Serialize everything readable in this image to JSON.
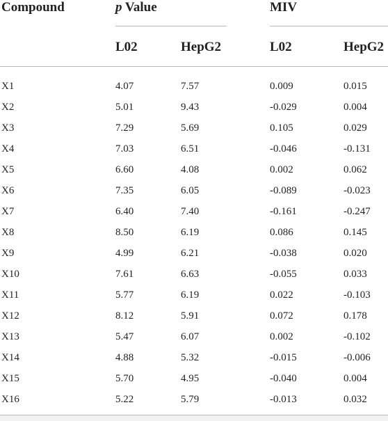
{
  "table": {
    "headers": {
      "compound": "Compound",
      "p_value_symbol": "p",
      "p_value_text": "Value",
      "miv": "MIV",
      "l02_p": "L02",
      "hepg2_p": "HepG2",
      "l02_miv": "L02",
      "hepg2_miv": "HepG2"
    },
    "rows": [
      {
        "compound": "X1",
        "p_l02": "4.07",
        "p_hepg2": "7.57",
        "miv_l02": "0.009",
        "miv_hepg2": "0.015"
      },
      {
        "compound": "X2",
        "p_l02": "5.01",
        "p_hepg2": "9.43",
        "miv_l02": "-0.029",
        "miv_hepg2": "0.004"
      },
      {
        "compound": "X3",
        "p_l02": "7.29",
        "p_hepg2": "5.69",
        "miv_l02": "0.105",
        "miv_hepg2": "0.029"
      },
      {
        "compound": "X4",
        "p_l02": "7.03",
        "p_hepg2": "6.51",
        "miv_l02": "-0.046",
        "miv_hepg2": "-0.131"
      },
      {
        "compound": "X5",
        "p_l02": "6.60",
        "p_hepg2": "4.08",
        "miv_l02": "0.002",
        "miv_hepg2": "0.062"
      },
      {
        "compound": "X6",
        "p_l02": "7.35",
        "p_hepg2": "6.05",
        "miv_l02": "-0.089",
        "miv_hepg2": "-0.023"
      },
      {
        "compound": "X7",
        "p_l02": "6.40",
        "p_hepg2": "7.40",
        "miv_l02": "-0.161",
        "miv_hepg2": "-0.247"
      },
      {
        "compound": "X8",
        "p_l02": "8.50",
        "p_hepg2": "6.19",
        "miv_l02": "0.086",
        "miv_hepg2": "0.145"
      },
      {
        "compound": "X9",
        "p_l02": "4.99",
        "p_hepg2": "6.21",
        "miv_l02": "-0.038",
        "miv_hepg2": "0.020"
      },
      {
        "compound": "X10",
        "p_l02": "7.61",
        "p_hepg2": "6.63",
        "miv_l02": "-0.055",
        "miv_hepg2": "0.033"
      },
      {
        "compound": "X11",
        "p_l02": "5.77",
        "p_hepg2": "6.19",
        "miv_l02": "0.022",
        "miv_hepg2": "-0.103"
      },
      {
        "compound": "X12",
        "p_l02": "8.12",
        "p_hepg2": "5.91",
        "miv_l02": "0.072",
        "miv_hepg2": "0.178"
      },
      {
        "compound": "X13",
        "p_l02": "5.47",
        "p_hepg2": "6.07",
        "miv_l02": "0.002",
        "miv_hepg2": "-0.102"
      },
      {
        "compound": "X14",
        "p_l02": "4.88",
        "p_hepg2": "5.32",
        "miv_l02": "-0.015",
        "miv_hepg2": "-0.006"
      },
      {
        "compound": "X15",
        "p_l02": "5.70",
        "p_hepg2": "4.95",
        "miv_l02": "-0.040",
        "miv_hepg2": "0.004"
      },
      {
        "compound": "X16",
        "p_l02": "5.22",
        "p_hepg2": "5.79",
        "miv_l02": "-0.013",
        "miv_hepg2": "0.032"
      }
    ]
  }
}
